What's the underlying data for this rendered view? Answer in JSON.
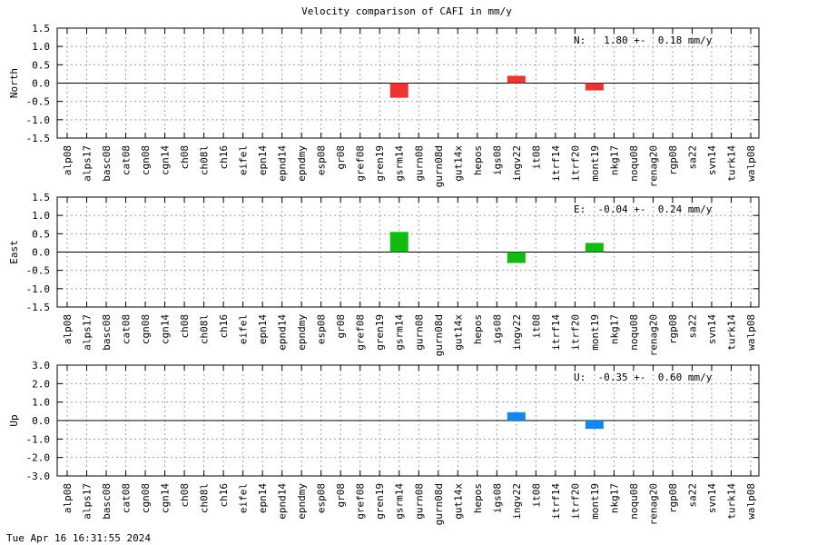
{
  "title": "Velocity comparison of CAFI in mm/y",
  "timestamp": "Tue Apr 16 16:31:55 2024",
  "chart_data": [
    {
      "type": "bar",
      "ylabel": "North",
      "summary": "N:   1.80 +-  0.18 mm/y",
      "ylim": [
        -1.5,
        1.5
      ],
      "yticks": [
        -1.5,
        -1.0,
        -0.5,
        0.0,
        0.5,
        1.0,
        1.5
      ],
      "ytick_labels": [
        "-1.5",
        "-1.0",
        "-0.5",
        "0.0",
        "0.5",
        "1.0",
        "1.5"
      ],
      "color": "#ee3333",
      "grid": true,
      "categories": [
        "alp08",
        "alps17",
        "basc08",
        "cat08",
        "cgn08",
        "cgn14",
        "ch08",
        "ch08l",
        "ch16",
        "eifel",
        "epn14",
        "epnd14",
        "epndmy",
        "esp08",
        "gr08",
        "gref08",
        "gren19",
        "gsrm14",
        "gurn08",
        "gurn08d",
        "gut14x",
        "hepos",
        "igs08",
        "ingv22",
        "it08",
        "itrf14",
        "itrf20",
        "mont19",
        "nkg17",
        "noqu08",
        "renag20",
        "rgp08",
        "sa22",
        "svn14",
        "turk14",
        "walp08"
      ],
      "bars": [
        {
          "category": "gsrm14",
          "value": -0.4
        },
        {
          "category": "ingv22",
          "value": 0.2
        },
        {
          "category": "mont19",
          "value": -0.2
        }
      ]
    },
    {
      "type": "bar",
      "ylabel": "East",
      "summary": "E:  -0.04 +-  0.24 mm/y",
      "ylim": [
        -1.5,
        1.5
      ],
      "yticks": [
        -1.5,
        -1.0,
        -0.5,
        0.0,
        0.5,
        1.0,
        1.5
      ],
      "ytick_labels": [
        "-1.5",
        "-1.0",
        "-0.5",
        "0.0",
        "0.5",
        "1.0",
        "1.5"
      ],
      "color": "#11bb11",
      "grid": true,
      "categories": [
        "alp08",
        "alps17",
        "basc08",
        "cat08",
        "cgn08",
        "cgn14",
        "ch08",
        "ch08l",
        "ch16",
        "eifel",
        "epn14",
        "epnd14",
        "epndmy",
        "esp08",
        "gr08",
        "gref08",
        "gren19",
        "gsrm14",
        "gurn08",
        "gurn08d",
        "gut14x",
        "hepos",
        "igs08",
        "ingv22",
        "it08",
        "itrf14",
        "itrf20",
        "mont19",
        "nkg17",
        "noqu08",
        "renag20",
        "rgp08",
        "sa22",
        "svn14",
        "turk14",
        "walp08"
      ],
      "bars": [
        {
          "category": "gsrm14",
          "value": 0.55
        },
        {
          "category": "ingv22",
          "value": -0.3
        },
        {
          "category": "mont19",
          "value": 0.25
        }
      ]
    },
    {
      "type": "bar",
      "ylabel": "Up",
      "summary": "U:  -0.35 +-  0.60 mm/y",
      "ylim": [
        -3.0,
        3.0
      ],
      "yticks": [
        -3.0,
        -2.0,
        -1.0,
        0.0,
        1.0,
        2.0,
        3.0
      ],
      "ytick_labels": [
        "-3.0",
        "-2.0",
        "-1.0",
        "0.0",
        "1.0",
        "2.0",
        "3.0"
      ],
      "color": "#1188ee",
      "grid": true,
      "categories": [
        "alp08",
        "alps17",
        "basc08",
        "cat08",
        "cgn08",
        "cgn14",
        "ch08",
        "ch08l",
        "ch16",
        "eifel",
        "epn14",
        "epnd14",
        "epndmy",
        "esp08",
        "gr08",
        "gref08",
        "gren19",
        "gsrm14",
        "gurn08",
        "gurn08d",
        "gut14x",
        "hepos",
        "igs08",
        "ingv22",
        "it08",
        "itrf14",
        "itrf20",
        "mont19",
        "nkg17",
        "noqu08",
        "renag20",
        "rgp08",
        "sa22",
        "svn14",
        "turk14",
        "walp08"
      ],
      "bars": [
        {
          "category": "ingv22",
          "value": 0.45
        },
        {
          "category": "mont19",
          "value": -0.45
        }
      ]
    }
  ]
}
